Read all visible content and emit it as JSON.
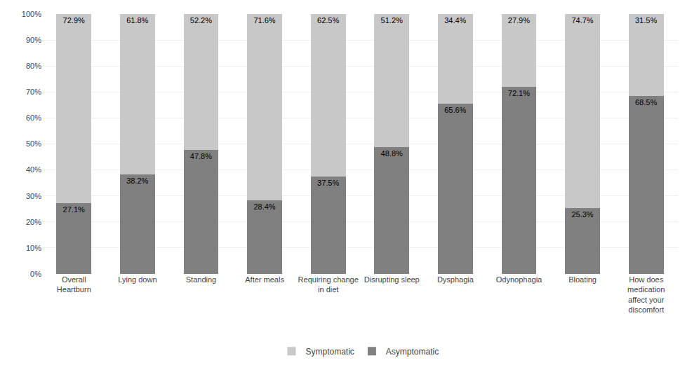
{
  "chart_data": {
    "type": "bar",
    "stacked": true,
    "categories": [
      "Overall\nHeartburn",
      "Lying down",
      "Standing",
      "After meals",
      "Requiring change\nin diet",
      "Disrupting sleep",
      "Dysphagia",
      "Odynophagia",
      "Bloating",
      "How does\nmedication\naffect your\ndiscomfort"
    ],
    "series": [
      {
        "name": "Asymptomatic",
        "color": "#808080",
        "values": [
          27.1,
          38.2,
          47.8,
          28.4,
          37.5,
          48.8,
          65.6,
          72.1,
          25.3,
          68.5
        ],
        "value_labels": [
          "27.1%",
          "38.2%",
          "47.8%",
          "28.4%",
          "37.5%",
          "48.8%",
          "65.6%",
          "72.1%",
          "25.3%",
          "68.5%"
        ]
      },
      {
        "name": "Symptomatic",
        "color": "#c8c8c8",
        "values": [
          72.9,
          61.8,
          52.2,
          71.6,
          62.5,
          51.2,
          34.4,
          27.9,
          74.7,
          31.5
        ],
        "value_labels": [
          "72.9%",
          "61.8%",
          "52.2%",
          "71.6%",
          "62.5%",
          "51.2%",
          "34.4%",
          "27.9%",
          "74.7%",
          "31.5%"
        ]
      }
    ],
    "ylim": [
      0,
      100
    ],
    "yticks": [
      {
        "value": 0,
        "label": "0%"
      },
      {
        "value": 10,
        "label": "10%"
      },
      {
        "value": 20,
        "label": "20%"
      },
      {
        "value": 30,
        "label": "30%"
      },
      {
        "value": 40,
        "label": "40%"
      },
      {
        "value": 50,
        "label": "50%"
      },
      {
        "value": 60,
        "label": "60%"
      },
      {
        "value": 70,
        "label": "70%"
      },
      {
        "value": 80,
        "label": "80%"
      },
      {
        "value": 90,
        "label": "90%"
      },
      {
        "value": 100,
        "label": "100%"
      }
    ],
    "grid": true,
    "legend": "bottom",
    "data_labels": true
  }
}
